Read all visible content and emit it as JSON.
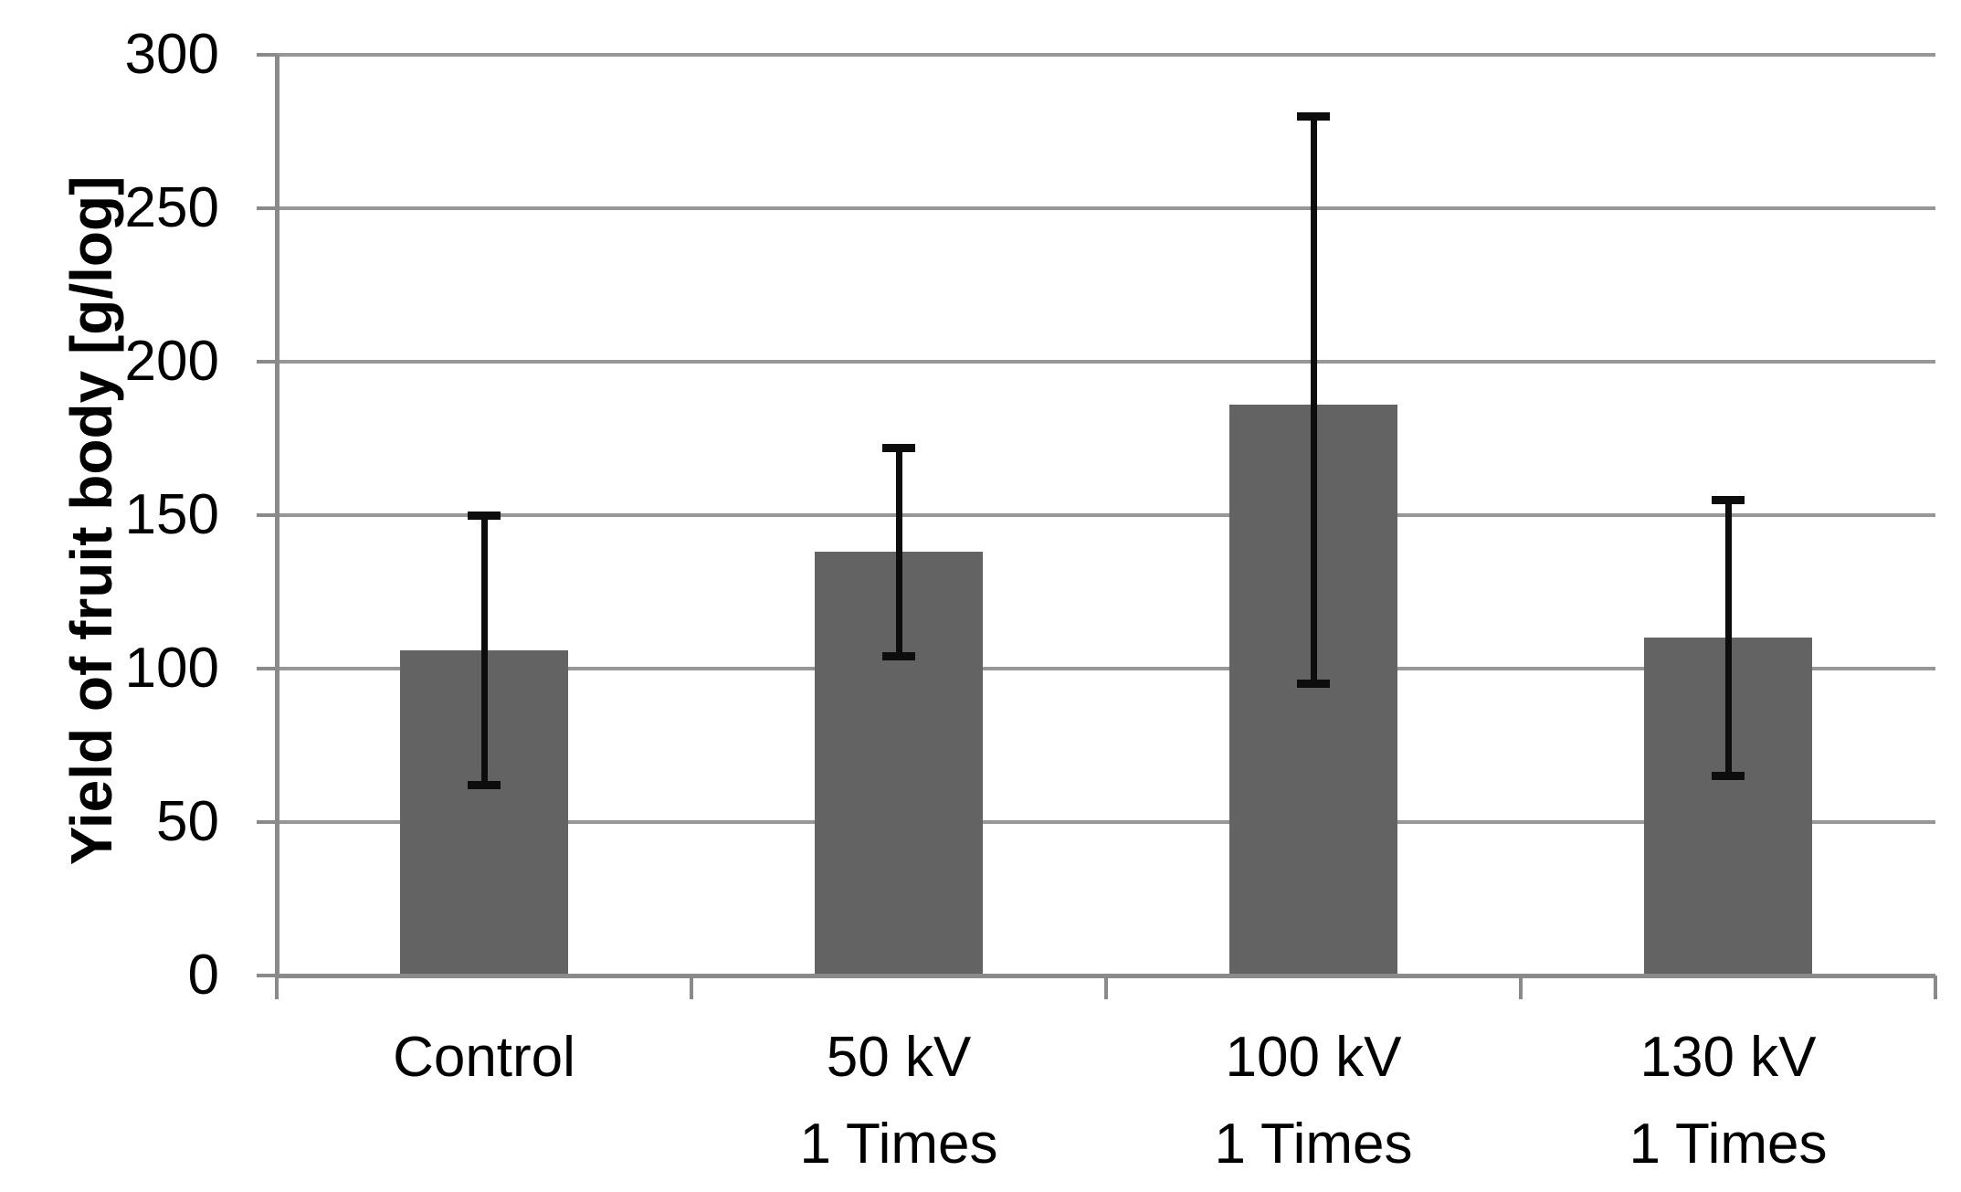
{
  "chart_data": {
    "type": "bar",
    "title": "",
    "xlabel": "",
    "ylabel": "Yield of fruit body [g/log]",
    "ylim": [
      0,
      300
    ],
    "yticks": [
      0,
      50,
      100,
      150,
      200,
      250,
      300
    ],
    "grid": true,
    "legend": "none",
    "categories": [
      {
        "line1": "Control",
        "line2": ""
      },
      {
        "line1": "50 kV",
        "line2": "1 Times"
      },
      {
        "line1": "100 kV",
        "line2": "1 Times"
      },
      {
        "line1": "130 kV",
        "line2": "1 Times"
      }
    ],
    "values": [
      106,
      138,
      186,
      110
    ],
    "error_low": [
      62,
      104,
      95,
      65
    ],
    "error_high": [
      150,
      172,
      280,
      155
    ],
    "bar_color": "#636363",
    "error_color": "#0d0d0d",
    "gridline_color": "#969696",
    "axis_color": "#8a8a8a",
    "text_color": "#000000",
    "background_color": "#ffffff"
  }
}
